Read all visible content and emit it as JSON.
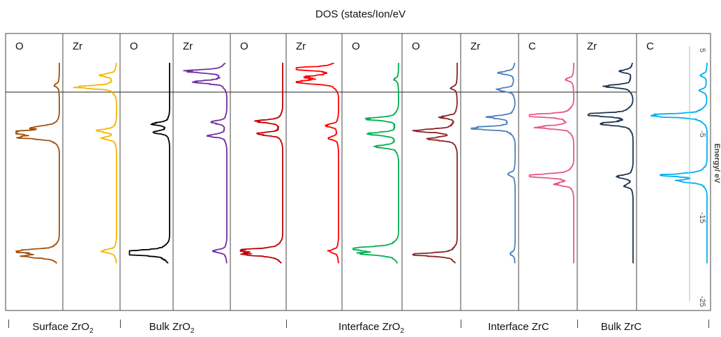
{
  "chart_data": {
    "type": "line",
    "title": "DOS (states/Ion/eV",
    "ylabel": "Energy/ eV",
    "ylim": [
      -25,
      6
    ],
    "y_ticks": [
      5,
      -5,
      -15,
      -25
    ],
    "fermi_level": 0,
    "groups": [
      {
        "name": "Surface ZrO",
        "sub": "2"
      },
      {
        "name": "Bulk ZrO",
        "sub": "2"
      },
      {
        "name": "Interface ZrO",
        "sub": "2"
      },
      {
        "name": "Interface ZrC",
        "sub": ""
      },
      {
        "name": "Bulk ZrC",
        "sub": ""
      }
    ],
    "panels": [
      {
        "label": "O",
        "group": 0,
        "color": "#a0520f",
        "peaks": [
          {
            "e": -4.8,
            "h": 0.9
          },
          {
            "e": -5.4,
            "h": 0.7
          },
          {
            "e": -4.2,
            "h": 0.4
          },
          {
            "e": -19.0,
            "h": 0.85
          },
          {
            "e": -19.6,
            "h": 0.6
          },
          {
            "e": 0.8,
            "h": 0.1
          }
        ]
      },
      {
        "label": "Zr",
        "group": 0,
        "color": "#f5b800",
        "peaks": [
          {
            "e": 0.6,
            "h": 0.75
          },
          {
            "e": 2.0,
            "h": 0.3
          },
          {
            "e": -4.6,
            "h": 0.35
          },
          {
            "e": -5.5,
            "h": 0.25
          },
          {
            "e": -19.0,
            "h": 0.3
          }
        ]
      },
      {
        "label": "O",
        "group": 1,
        "color": "#000000",
        "peaks": [
          {
            "e": -3.8,
            "h": 0.35
          },
          {
            "e": -4.8,
            "h": 0.3
          },
          {
            "e": -19.3,
            "h": 0.9
          },
          {
            "e": -19.0,
            "h": 0.5
          }
        ]
      },
      {
        "label": "Zr",
        "group": 1,
        "color": "#7030a0",
        "peaks": [
          {
            "e": 2.5,
            "h": 0.75
          },
          {
            "e": 1.2,
            "h": 0.6
          },
          {
            "e": -3.6,
            "h": 0.3
          },
          {
            "e": -5.2,
            "h": 0.35
          },
          {
            "e": -19.0,
            "h": 0.25
          }
        ]
      },
      {
        "label": "O",
        "group": 1,
        "color": "#c00000",
        "peaks": [
          {
            "e": -3.5,
            "h": 0.5
          },
          {
            "e": -5.0,
            "h": 0.5
          },
          {
            "e": -18.9,
            "h": 0.8
          },
          {
            "e": -19.4,
            "h": 0.6
          }
        ]
      },
      {
        "label": "Zr",
        "group": 2,
        "color": "#ff0000",
        "peaks": [
          {
            "e": 2.8,
            "h": 0.95
          },
          {
            "e": 1.2,
            "h": 0.85
          },
          {
            "e": 1.8,
            "h": 0.5
          },
          {
            "e": -4.0,
            "h": 0.25
          },
          {
            "e": -5.5,
            "h": 0.2
          },
          {
            "e": -19.0,
            "h": 0.2
          }
        ]
      },
      {
        "label": "O",
        "group": 2,
        "color": "#00b050",
        "peaks": [
          {
            "e": -3.2,
            "h": 0.6
          },
          {
            "e": -5.0,
            "h": 0.55
          },
          {
            "e": -6.5,
            "h": 0.4
          },
          {
            "e": -18.7,
            "h": 0.95
          },
          {
            "e": -19.3,
            "h": 0.6
          },
          {
            "e": 1.5,
            "h": 0.08
          }
        ]
      },
      {
        "label": "O",
        "group": 2,
        "color": "#8b2323",
        "peaks": [
          {
            "e": -4.6,
            "h": 0.8
          },
          {
            "e": -5.6,
            "h": 0.5
          },
          {
            "e": -3.0,
            "h": 0.3
          },
          {
            "e": -19.4,
            "h": 0.85
          },
          {
            "e": 0.5,
            "h": 0.12
          }
        ]
      },
      {
        "label": "Zr",
        "group": 3,
        "color": "#4f81bd",
        "peaks": [
          {
            "e": -4.3,
            "h": 0.85
          },
          {
            "e": -3.0,
            "h": 0.5
          },
          {
            "e": 2.3,
            "h": 0.3
          },
          {
            "e": 0.3,
            "h": 0.35
          },
          {
            "e": -9.8,
            "h": 0.15
          },
          {
            "e": -19.3,
            "h": 0.1
          }
        ]
      },
      {
        "label": "C",
        "group": 3,
        "color": "#e8578a",
        "peaks": [
          {
            "e": -2.8,
            "h": 0.95
          },
          {
            "e": -4.2,
            "h": 0.7
          },
          {
            "e": -10.0,
            "h": 0.95
          },
          {
            "e": -11.0,
            "h": 0.3
          },
          {
            "e": 1.5,
            "h": 0.15
          }
        ]
      },
      {
        "label": "Zr",
        "group": 4,
        "color": "#1f3552",
        "peaks": [
          {
            "e": -2.7,
            "h": 0.95
          },
          {
            "e": -3.8,
            "h": 0.6
          },
          {
            "e": 0.7,
            "h": 0.5
          },
          {
            "e": 2.5,
            "h": 0.25
          },
          {
            "e": -10.1,
            "h": 0.3
          },
          {
            "e": -11.2,
            "h": 0.15
          }
        ]
      },
      {
        "label": "C",
        "group": 4,
        "color": "#00b0f0",
        "peaks": [
          {
            "e": -2.8,
            "h": 0.95
          },
          {
            "e": -9.9,
            "h": 0.6
          },
          {
            "e": -10.6,
            "h": 0.4
          },
          {
            "e": 0.2,
            "h": 0.12
          },
          {
            "e": 2.0,
            "h": 0.1
          }
        ]
      }
    ]
  }
}
